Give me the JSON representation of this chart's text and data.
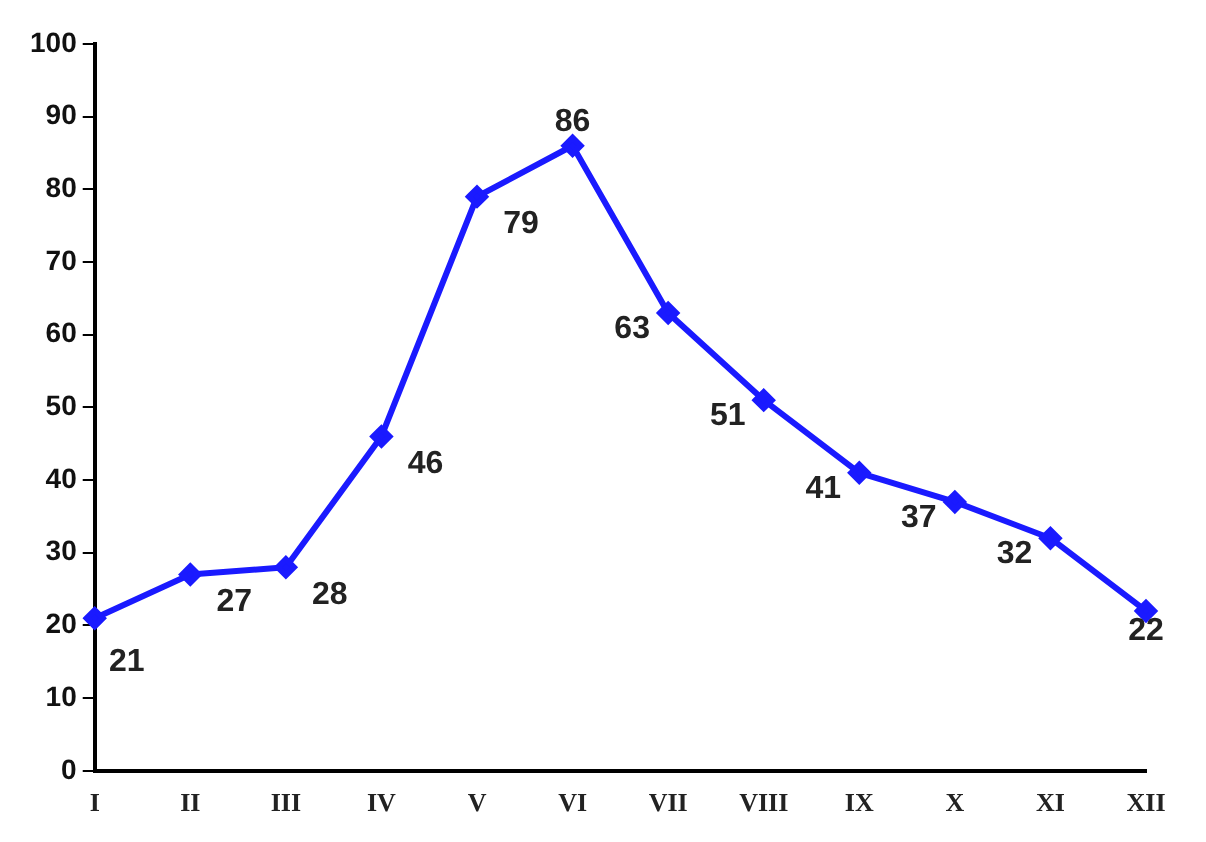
{
  "chart_data": {
    "type": "line",
    "categories": [
      "I",
      "II",
      "III",
      "IV",
      "V",
      "VI",
      "VII",
      "VIII",
      "IX",
      "X",
      "XI",
      "XII"
    ],
    "series": [
      {
        "color": "#1a1aff",
        "values": [
          21,
          27,
          28,
          46,
          79,
          86,
          63,
          51,
          41,
          37,
          32,
          22
        ]
      }
    ],
    "ylim": [
      0,
      100
    ],
    "yticks": [
      0,
      10,
      20,
      30,
      40,
      50,
      60,
      70,
      80,
      90,
      100
    ],
    "grid": false,
    "legend": false,
    "marker": "diamond",
    "line_style": "solid",
    "data_labels": true
  }
}
